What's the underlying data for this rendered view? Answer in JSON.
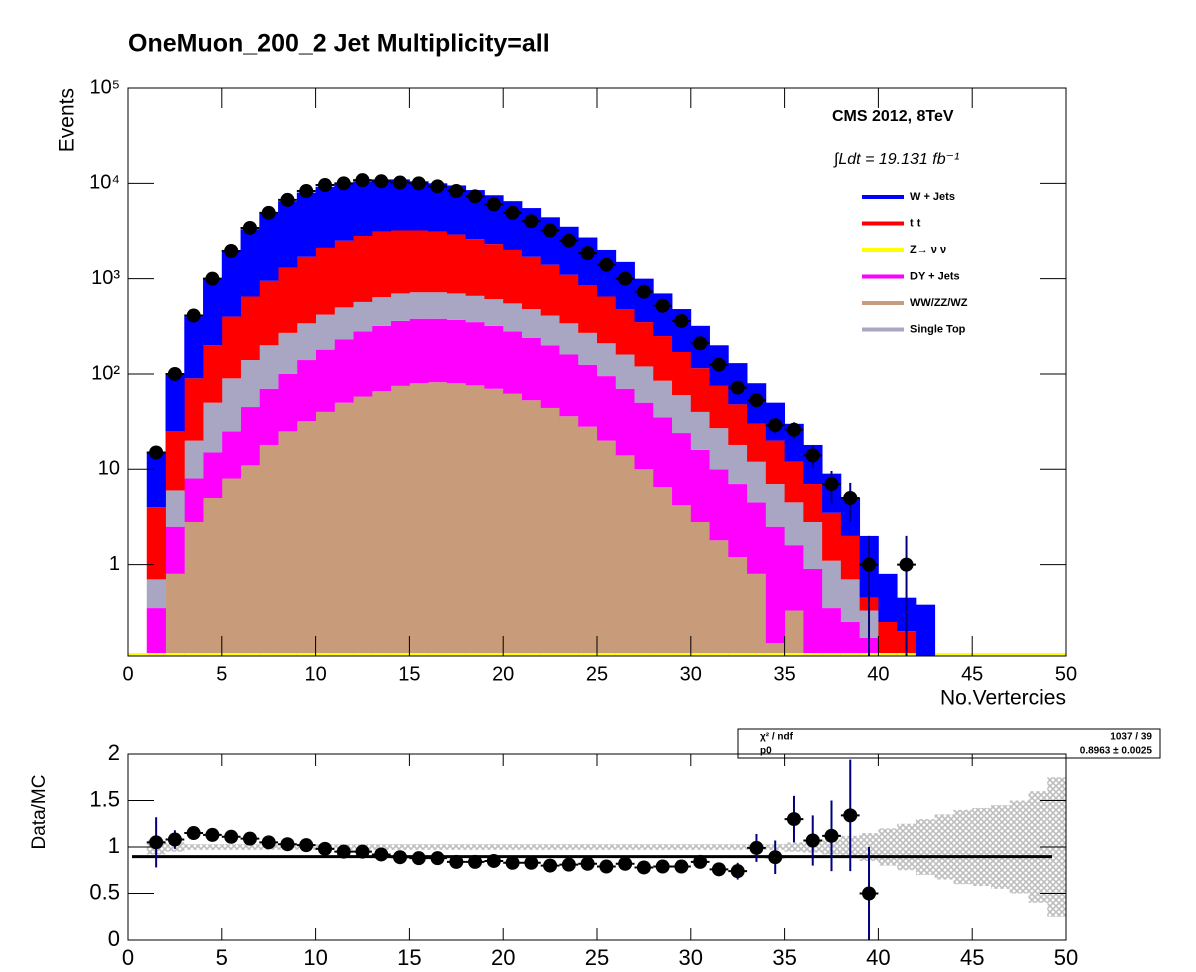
{
  "chart_data": [
    {
      "type": "histogram",
      "title": "OneMuon_200_2    Jet Multiplicity=all",
      "ylabel": "Events",
      "xlabel": "No.Vertercies",
      "annotations": [
        "CMS 2012, 8TeV",
        "∫Ldt = 19.131 fb⁻¹"
      ],
      "bins": [
        0,
        1,
        2,
        3,
        4,
        5,
        6,
        7,
        8,
        9,
        10,
        11,
        12,
        13,
        14,
        15,
        16,
        17,
        18,
        19,
        20,
        21,
        22,
        23,
        24,
        25,
        26,
        27,
        28,
        29,
        30,
        31,
        32,
        33,
        34,
        35,
        36,
        37,
        38,
        39,
        40,
        41,
        42,
        43,
        44,
        45,
        46,
        47,
        48,
        49,
        50
      ],
      "series": [
        {
          "name": "WW/ZZ/WZ",
          "color": "#c89b7b",
          "values": [
            0,
            0,
            0.8,
            2.8,
            5,
            8,
            11,
            18,
            25,
            32,
            40,
            50,
            58,
            66,
            75,
            80,
            82,
            80,
            76,
            70,
            62,
            53,
            44,
            36,
            28,
            20,
            14,
            10,
            6.5,
            4.2,
            2.8,
            1.8,
            1.2,
            0.8,
            0.15,
            0.33,
            0,
            0,
            0,
            0,
            0,
            0,
            0,
            0,
            0,
            0,
            0,
            0,
            0,
            0
          ]
        },
        {
          "name": "DY + Jets",
          "color": "#ff00ff",
          "values": [
            0,
            0.35,
            1.7,
            5.2,
            10,
            17,
            34,
            52,
            75,
            108,
            140,
            180,
            222,
            254,
            285,
            300,
            298,
            290,
            274,
            250,
            218,
            187,
            156,
            124,
            97,
            75,
            56,
            40,
            28.5,
            19.8,
            13.2,
            8.2,
            5.8,
            3.7,
            2.35,
            1.27,
            0.9,
            0.35,
            0.25,
            0.17,
            0,
            0,
            0,
            0,
            0,
            0,
            0,
            0,
            0,
            0
          ]
        },
        {
          "name": "Single Top",
          "color": "#a9a6c4",
          "values": [
            0,
            0.35,
            3.5,
            12,
            35,
            65,
            95,
            130,
            170,
            200,
            240,
            270,
            290,
            320,
            340,
            340,
            340,
            330,
            310,
            290,
            270,
            240,
            210,
            180,
            145,
            115,
            90,
            70,
            50,
            36,
            24,
            17,
            11,
            7.5,
            4.5,
            2.9,
            1.9,
            0.75,
            0.45,
            0.16,
            0,
            0,
            0,
            0,
            0,
            0,
            0,
            0,
            0,
            0
          ]
        },
        {
          "name": "t  t",
          "color": "#ff0000",
          "values": [
            0,
            3.3,
            19,
            70,
            150,
            310,
            510,
            750,
            1030,
            1360,
            1680,
            2000,
            2230,
            2460,
            2500,
            2480,
            2380,
            2200,
            1940,
            1690,
            1450,
            1220,
            990,
            760,
            580,
            440,
            320,
            230,
            165,
            110,
            75,
            48,
            30,
            18,
            13,
            7.5,
            4.2,
            2.4,
            1.3,
            0.12,
            0.25,
            0.2,
            0,
            0,
            0,
            0,
            0,
            0,
            0,
            0
          ]
        },
        {
          "name": "Z→ ν  ν",
          "color": "#ffff00",
          "values": [
            0,
            0,
            0,
            0,
            0,
            0,
            0,
            0,
            0,
            0,
            0,
            0,
            0,
            0,
            0,
            0,
            0,
            0,
            0,
            0,
            0,
            0,
            0,
            0,
            0,
            0,
            0,
            0,
            0,
            0,
            0,
            0,
            0,
            0,
            0,
            0,
            0,
            0,
            0,
            0,
            0,
            0,
            0,
            0,
            0,
            0,
            0,
            0,
            0,
            0
          ]
        },
        {
          "name": "W + Jets",
          "color": "#0000ff",
          "values": [
            0,
            11,
            75,
            310,
            800,
            1600,
            2650,
            3850,
            5200,
            6300,
            7100,
            7500,
            7700,
            7900,
            7800,
            7300,
            6900,
            6600,
            5900,
            5200,
            4500,
            3800,
            3000,
            2400,
            1850,
            1350,
            1020,
            650,
            450,
            310,
            205,
            125,
            82,
            50,
            30,
            18,
            11,
            5.5,
            3,
            1.55,
            0.55,
            0.25,
            0.38,
            0,
            0,
            0,
            0,
            0,
            0,
            0
          ]
        }
      ],
      "data_color": "#000000",
      "data_values": [
        null,
        15,
        100,
        410,
        1000,
        1950,
        3400,
        4900,
        6700,
        8300,
        9600,
        10000,
        10800,
        10500,
        10200,
        10000,
        9300,
        8300,
        7300,
        6000,
        4900,
        4000,
        3200,
        2500,
        1850,
        1400,
        1000,
        730,
        520,
        360,
        210,
        125,
        72,
        53,
        29,
        26,
        14,
        7,
        5,
        1,
        null,
        1,
        null,
        null,
        null,
        null,
        null,
        null,
        null,
        null
      ],
      "data_errors": [
        null,
        null,
        null,
        null,
        null,
        null,
        null,
        null,
        null,
        null,
        null,
        null,
        null,
        null,
        null,
        null,
        null,
        null,
        null,
        null,
        null,
        null,
        null,
        null,
        null,
        null,
        null,
        null,
        null,
        null,
        null,
        null,
        null,
        7.3,
        5.4,
        5.1,
        3.7,
        2.6,
        2.2,
        1,
        null,
        1,
        null,
        null,
        null,
        null,
        null,
        null,
        null,
        null
      ],
      "xlim": [
        0,
        50
      ],
      "xticks": [
        0,
        5,
        10,
        15,
        20,
        25,
        30,
        35,
        40,
        45,
        50
      ],
      "ylim": [
        0.11,
        100000
      ],
      "yticks": [
        1,
        10,
        {
          "value": 100,
          "label": "10²"
        },
        {
          "value": 1000,
          "label": "10³"
        },
        {
          "value": 10000,
          "label": "10⁴"
        },
        {
          "value": 100000,
          "label": "10⁵"
        }
      ],
      "log_y": true,
      "stacked": true,
      "legend": "top-right"
    },
    {
      "type": "scatter",
      "ylabel": "Data/MC",
      "bins": [
        0,
        1,
        2,
        3,
        4,
        5,
        6,
        7,
        8,
        9,
        10,
        11,
        12,
        13,
        14,
        15,
        16,
        17,
        18,
        19,
        20,
        21,
        22,
        23,
        24,
        25,
        26,
        27,
        28,
        29,
        30,
        31,
        32,
        33,
        34,
        35,
        36,
        37,
        38,
        39,
        40,
        41,
        42,
        43,
        44,
        45,
        46,
        47,
        48,
        49,
        50
      ],
      "values": [
        null,
        1.05,
        1.08,
        1.15,
        1.13,
        1.11,
        1.09,
        1.05,
        1.03,
        1.02,
        0.98,
        0.95,
        0.95,
        0.92,
        0.89,
        0.88,
        0.88,
        0.84,
        0.84,
        0.85,
        0.83,
        0.83,
        0.8,
        0.81,
        0.82,
        0.79,
        0.82,
        0.78,
        0.79,
        0.79,
        0.84,
        0.76,
        0.74,
        0.99,
        0.89,
        1.3,
        1.07,
        1.12,
        1.34,
        0.5,
        null,
        null,
        null,
        null,
        null,
        null,
        null,
        null,
        null,
        null
      ],
      "errors": [
        null,
        0.27,
        0.1,
        0.06,
        0.04,
        0.03,
        0.03,
        0.03,
        0.03,
        0.03,
        0.02,
        0.02,
        0.02,
        0.02,
        0.02,
        0.02,
        0.02,
        0.02,
        0.02,
        0.02,
        0.02,
        0.02,
        0.02,
        0.02,
        0.02,
        0.02,
        0.02,
        0.02,
        0.02,
        0.04,
        0.05,
        0.07,
        0.09,
        0.15,
        0.18,
        0.25,
        0.27,
        0.38,
        0.6,
        0.5,
        null,
        null,
        null,
        null,
        null,
        null,
        null,
        null,
        null,
        null
      ],
      "mc_uncertainty": [
        null,
        0.08,
        0.05,
        0.03,
        0.03,
        0.03,
        0.03,
        0.03,
        0.03,
        0.03,
        0.03,
        0.03,
        0.03,
        0.03,
        0.03,
        0.03,
        0.03,
        0.03,
        0.03,
        0.03,
        0.03,
        0.03,
        0.03,
        0.03,
        0.03,
        0.03,
        0.03,
        0.03,
        0.03,
        0.03,
        0.03,
        0.03,
        0.03,
        0.03,
        0.03,
        0.05,
        0.06,
        0.08,
        0.12,
        0.15,
        0.2,
        0.25,
        0.3,
        0.35,
        0.4,
        0.42,
        0.45,
        0.5,
        0.6,
        0.75
      ],
      "fit_value": 0.8963,
      "stats": [
        [
          "χ² / ndf",
          "1037 / 39"
        ],
        [
          "p0",
          "0.8963 ± 0.0025"
        ]
      ],
      "xlim": [
        0,
        50
      ],
      "xticks": [
        0,
        5,
        10,
        15,
        20,
        25,
        30,
        35,
        40,
        45,
        50
      ],
      "ylim": [
        0,
        2
      ],
      "yticks": [
        0,
        0.5,
        1,
        1.5,
        2
      ]
    }
  ]
}
